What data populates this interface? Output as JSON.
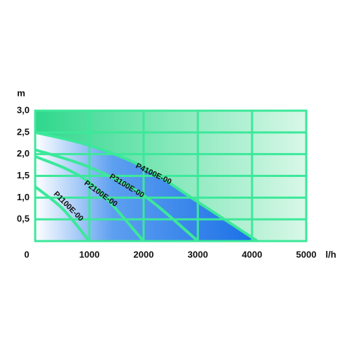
{
  "chart_data": {
    "type": "line",
    "y_label": "m",
    "x_label": "l/h",
    "xlim": [
      0,
      5000
    ],
    "ylim": [
      0,
      3
    ],
    "xticks": [
      0,
      1000,
      2000,
      3000,
      4000,
      5000
    ],
    "yticks": [
      {
        "value": 0.5,
        "label": "0,5"
      },
      {
        "value": 1,
        "label": "1,0"
      },
      {
        "value": 1.5,
        "label": "1,5"
      },
      {
        "value": 2,
        "label": "2,0"
      },
      {
        "value": 2.5,
        "label": "2,5"
      },
      {
        "value": 3,
        "label": "3,0"
      }
    ],
    "grid": true,
    "series": [
      {
        "name": "P4100E-00",
        "color": "#3ce89a",
        "x": [
          0,
          1000,
          2000,
          3000,
          4100
        ],
        "values": [
          2.5,
          2.2,
          1.7,
          0.9,
          0
        ]
      },
      {
        "name": "P3100E-00",
        "color": "#3ce89a",
        "x": [
          0,
          1000,
          2000,
          3000
        ],
        "values": [
          2.1,
          1.7,
          1.05,
          0
        ]
      },
      {
        "name": "P2100E-00",
        "color": "#3ce89a",
        "x": [
          0,
          1000,
          2000
        ],
        "values": [
          1.95,
          1.35,
          0
        ]
      },
      {
        "name": "P1100E-00",
        "color": "#3ce89a",
        "x": [
          0,
          500,
          1000
        ],
        "values": [
          1.25,
          0.75,
          0
        ]
      }
    ]
  }
}
